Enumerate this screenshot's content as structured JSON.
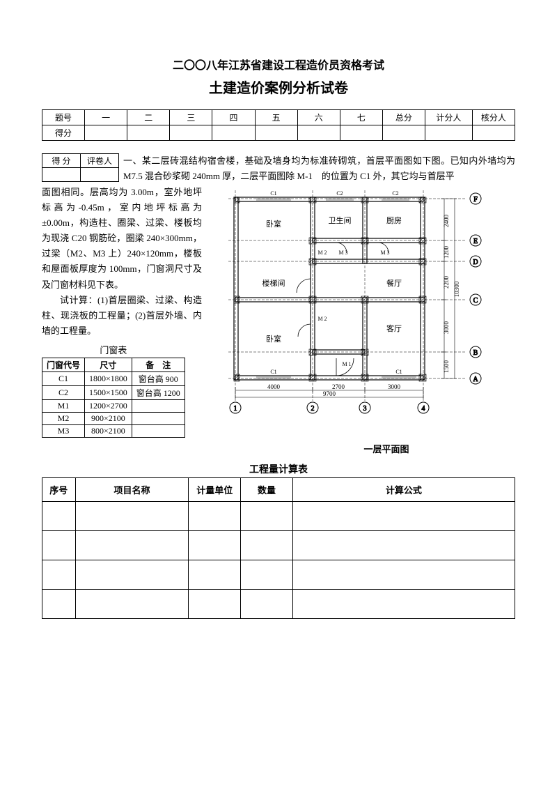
{
  "header": {
    "line1": "二〇〇八年江苏省建设工程造价员资格考试",
    "line2": "土建造价案例分析试卷"
  },
  "score_table": {
    "row1": [
      "题号",
      "一",
      "二",
      "三",
      "四",
      "五",
      "六",
      "七",
      "总分",
      "计分人",
      "核分人"
    ],
    "row2": [
      "得分",
      "",
      "",
      "",
      "",
      "",
      "",
      "",
      "",
      "",
      ""
    ]
  },
  "mini_score": {
    "h1": "得 分",
    "h2": "评卷人"
  },
  "question": {
    "lead": "一、某二层砖混结构宿舍楼，基础及墙身均为标准砖砌筑，首层平面图如下图。已知内外墙均为 M7.5 混合砂浆砌 240mm 厚，二层平面图除 M-1　的位置为 C1 外，其它均与首层平",
    "p1": "面图相同。层高均为 3.00m，室外地坪标高为-0.45m，室内地坪标高为±0.00m，构造柱、圈梁、过梁、楼板均为现浇 C20 钢筋砼，圈梁 240×300mm，过梁（M2、M3 上）240×120mm，楼板和屋面板厚度为 100mm，门窗洞尺寸及及门窗材料见下表。",
    "p2": "试计算：(1)首层圈梁、过梁、构造柱、现浇板的工程量；(2)首层外墙、内墙的工程量。"
  },
  "window_table": {
    "caption": "门窗表",
    "headers": [
      "门窗代号",
      "尺寸",
      "备　注"
    ],
    "rows": [
      [
        "C1",
        "1800×1800",
        "窗台高 900"
      ],
      [
        "C2",
        "1500×1500",
        "窗台高 1200"
      ],
      [
        "M1",
        "1200×2700",
        ""
      ],
      [
        "M2",
        "900×2100",
        ""
      ],
      [
        "M3",
        "800×2100",
        ""
      ]
    ]
  },
  "floorplan": {
    "caption": "一层平面图",
    "rooms": {
      "bedroom": "卧室",
      "stair": "楼梯间",
      "bath": "卫生间",
      "kitchen": "厨房",
      "dining": "餐厅",
      "living": "客厅"
    },
    "window_labels": {
      "c1": "C1",
      "c2": "C2"
    },
    "door_labels": {
      "m1": "M 1",
      "m2": "M 2",
      "m3": "M 3"
    },
    "axis_cols": [
      "1",
      "2",
      "3",
      "4"
    ],
    "axis_rows": [
      "A",
      "B",
      "C",
      "D",
      "E",
      "F"
    ],
    "dims_h": {
      "d1": "4000",
      "d2": "2700",
      "d3": "3000",
      "total": "9700"
    },
    "dims_v": {
      "d1": "2400",
      "d2": "1200",
      "d3": "2200",
      "d4": "3000",
      "d5": "1500",
      "total": "10300"
    },
    "colors": {
      "line": "#000000",
      "hatch": "#000000",
      "bg": "#ffffff",
      "text": "#000000"
    },
    "stroke_main": 1.2,
    "stroke_thin": 0.6,
    "font_room": 11,
    "font_label": 8,
    "font_dim": 9,
    "font_axis": 10
  },
  "calc_table": {
    "title": "工程量计算表",
    "headers": [
      "序号",
      "项目名称",
      "计量单位",
      "数量",
      "计算公式"
    ],
    "col_widths": [
      "7%",
      "24%",
      "11%",
      "11%",
      "47%"
    ],
    "rows": 4
  }
}
